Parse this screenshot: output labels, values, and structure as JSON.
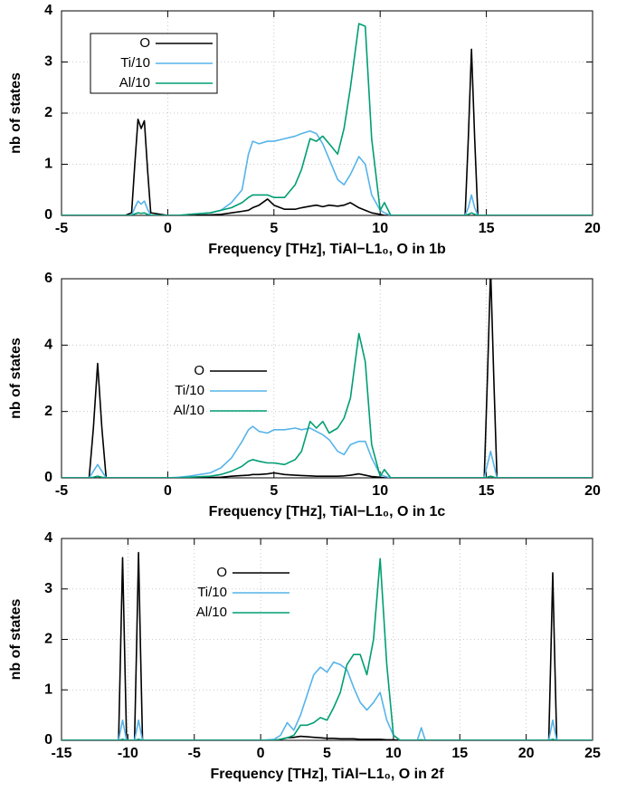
{
  "chart_data": [
    {
      "type": "line",
      "xlabel": "Frequency [THz], TiAl−L1₀, O in 1b",
      "ylabel": "nb of states",
      "xlim": [
        -5,
        20
      ],
      "xticks": [
        -5,
        0,
        5,
        10,
        15,
        20
      ],
      "ylim": [
        0,
        4
      ],
      "yticks": [
        0,
        1,
        2,
        3,
        4
      ],
      "grid": true,
      "legend": "upper left",
      "legend_box": true,
      "x": [
        -5,
        -2,
        -1.7,
        -1.55,
        -1.4,
        -1.25,
        -1.1,
        -0.95,
        -0.8,
        0,
        0.5,
        1,
        2,
        2.5,
        3,
        3.5,
        3.8,
        4,
        4.3,
        4.7,
        5,
        5.5,
        6,
        6.3,
        6.7,
        7,
        7.3,
        7.6,
        8,
        8.3,
        8.6,
        9,
        9.3,
        9.6,
        10,
        10.2,
        10.5,
        11,
        14,
        14.15,
        14.3,
        14.45,
        14.6,
        20
      ],
      "series": [
        {
          "name": "O",
          "color": "#000000",
          "values": [
            0,
            0,
            0.05,
            1.0,
            1.88,
            1.7,
            1.85,
            0.9,
            0.05,
            0,
            0,
            0,
            0.01,
            0.02,
            0.05,
            0.08,
            0.1,
            0.15,
            0.2,
            0.32,
            0.2,
            0.12,
            0.12,
            0.15,
            0.18,
            0.2,
            0.17,
            0.2,
            0.18,
            0.2,
            0.25,
            0.15,
            0.1,
            0.05,
            0.02,
            0,
            0,
            0,
            0,
            1.5,
            3.25,
            1.5,
            0,
            0
          ]
        },
        {
          "name": "Ti/10",
          "color": "#56b4e9",
          "values": [
            0,
            0,
            0,
            0.15,
            0.28,
            0.22,
            0.28,
            0.12,
            0,
            0,
            0,
            0.02,
            0.05,
            0.1,
            0.25,
            0.5,
            1.2,
            1.45,
            1.4,
            1.45,
            1.45,
            1.5,
            1.55,
            1.6,
            1.65,
            1.6,
            1.4,
            1.1,
            0.7,
            0.6,
            0.8,
            1.15,
            1.0,
            0.4,
            0.1,
            0.05,
            0,
            0,
            0,
            0.15,
            0.4,
            0.15,
            0,
            0
          ]
        },
        {
          "name": "Al/10",
          "color": "#009e73",
          "values": [
            0,
            0,
            0,
            0.03,
            0.05,
            0.04,
            0.05,
            0.02,
            0,
            0,
            0,
            0.02,
            0.05,
            0.1,
            0.15,
            0.25,
            0.35,
            0.4,
            0.4,
            0.4,
            0.35,
            0.35,
            0.6,
            0.9,
            1.5,
            1.45,
            1.55,
            1.4,
            1.2,
            1.7,
            2.5,
            3.75,
            3.7,
            1.5,
            0.1,
            0.25,
            0,
            0,
            0,
            0.02,
            0.05,
            0.02,
            0,
            0
          ]
        }
      ]
    },
    {
      "type": "line",
      "xlabel": "Frequency [THz], TiAl−L1₀, O in 1c",
      "ylabel": "nb of states",
      "xlim": [
        -5,
        20
      ],
      "xticks": [
        -5,
        0,
        5,
        10,
        15,
        20
      ],
      "ylim": [
        0,
        6
      ],
      "yticks": [
        0,
        2,
        4,
        6
      ],
      "grid": true,
      "legend": "upper left",
      "legend_box": false,
      "x": [
        -5,
        -3.7,
        -3.5,
        -3.3,
        -3.1,
        -2.9,
        0,
        0.5,
        1,
        2,
        2.5,
        3,
        3.5,
        3.8,
        4,
        4.3,
        4.7,
        5,
        5.5,
        6,
        6.3,
        6.7,
        7,
        7.3,
        7.6,
        8,
        8.3,
        8.6,
        9,
        9.3,
        9.6,
        10,
        10.2,
        10.5,
        11,
        14.9,
        15.05,
        15.2,
        15.35,
        15.5,
        20
      ],
      "series": [
        {
          "name": "O",
          "color": "#000000",
          "values": [
            0,
            0,
            1.5,
            3.45,
            1.5,
            0,
            0,
            0,
            0,
            0.01,
            0.02,
            0.05,
            0.07,
            0.08,
            0.1,
            0.1,
            0.12,
            0.15,
            0.1,
            0.08,
            0.07,
            0.06,
            0.05,
            0.05,
            0.05,
            0.05,
            0.06,
            0.08,
            0.12,
            0.08,
            0.04,
            0.02,
            0,
            0,
            0,
            0,
            3,
            6.3,
            3,
            0,
            0
          ]
        },
        {
          "name": "Ti/10",
          "color": "#56b4e9",
          "values": [
            0,
            0,
            0.2,
            0.4,
            0.2,
            0,
            0,
            0.02,
            0.05,
            0.15,
            0.3,
            0.6,
            1.1,
            1.45,
            1.55,
            1.4,
            1.35,
            1.45,
            1.45,
            1.5,
            1.45,
            1.5,
            1.4,
            1.3,
            1.15,
            0.8,
            0.7,
            1.0,
            1.1,
            1.1,
            0.6,
            0.1,
            0.05,
            0,
            0,
            0,
            0.4,
            0.8,
            0.4,
            0,
            0
          ]
        },
        {
          "name": "Al/10",
          "color": "#009e73",
          "values": [
            0,
            0,
            0.02,
            0.05,
            0.02,
            0,
            0,
            0,
            0.02,
            0.05,
            0.1,
            0.2,
            0.35,
            0.5,
            0.55,
            0.5,
            0.45,
            0.45,
            0.4,
            0.55,
            0.8,
            1.7,
            1.5,
            1.7,
            1.35,
            1.5,
            1.8,
            2.4,
            4.35,
            3.5,
            1.0,
            0.05,
            0.25,
            0,
            0,
            0,
            0.02,
            0.05,
            0.02,
            0,
            0
          ]
        }
      ]
    },
    {
      "type": "line",
      "xlabel": "Frequency [THz], TiAl−L1₀, O in 2f",
      "ylabel": "nb of states",
      "xlim": [
        -15,
        25
      ],
      "xticks": [
        -15,
        -10,
        -5,
        0,
        5,
        10,
        15,
        20,
        25
      ],
      "ylim": [
        0,
        4
      ],
      "yticks": [
        0,
        1,
        2,
        3,
        4
      ],
      "grid": true,
      "legend": "upper left",
      "legend_box": false,
      "x": [
        -15,
        -10.7,
        -10.55,
        -10.4,
        -10.25,
        -10.1,
        -9.5,
        -9.35,
        -9.2,
        -9.05,
        -8.9,
        0,
        1,
        1.5,
        2,
        2.5,
        3,
        3.5,
        4,
        4.5,
        5,
        5.5,
        6,
        6.5,
        7,
        7.5,
        8,
        8.5,
        9,
        9.5,
        10,
        10.5,
        11.8,
        12.1,
        12.4,
        21.7,
        21.85,
        22,
        22.15,
        22.3,
        25
      ],
      "series": [
        {
          "name": "O",
          "color": "#000000",
          "values": [
            0,
            0,
            1.8,
            3.62,
            1.8,
            0,
            0,
            1.8,
            3.72,
            1.8,
            0,
            0,
            0,
            0.02,
            0.05,
            0.06,
            0.08,
            0.07,
            0.06,
            0.05,
            0.04,
            0.04,
            0.03,
            0.03,
            0.03,
            0.02,
            0.02,
            0.02,
            0.02,
            0.01,
            0.01,
            0,
            0,
            0,
            0,
            0,
            1.6,
            3.32,
            1.6,
            0,
            0
          ]
        },
        {
          "name": "Ti/10",
          "color": "#56b4e9",
          "values": [
            0,
            0,
            0.2,
            0.4,
            0.2,
            0,
            0,
            0.2,
            0.4,
            0.2,
            0,
            0,
            0.02,
            0.1,
            0.35,
            0.2,
            0.5,
            0.9,
            1.3,
            1.45,
            1.35,
            1.55,
            1.5,
            1.4,
            1.05,
            0.75,
            0.6,
            0.75,
            0.95,
            0.4,
            0.1,
            0,
            0,
            0.25,
            0,
            0,
            0.2,
            0.4,
            0.2,
            0,
            0
          ]
        },
        {
          "name": "Al/10",
          "color": "#009e73",
          "values": [
            0,
            0,
            0.01,
            0.02,
            0.01,
            0,
            0,
            0.01,
            0.02,
            0.01,
            0,
            0,
            0,
            0.02,
            0.05,
            0.1,
            0.3,
            0.3,
            0.35,
            0.45,
            0.4,
            0.65,
            0.95,
            1.5,
            1.7,
            1.7,
            1.3,
            2.0,
            3.6,
            1.5,
            0.1,
            0,
            0,
            0.01,
            0,
            0,
            0.01,
            0.02,
            0.01,
            0,
            0
          ]
        }
      ]
    }
  ]
}
